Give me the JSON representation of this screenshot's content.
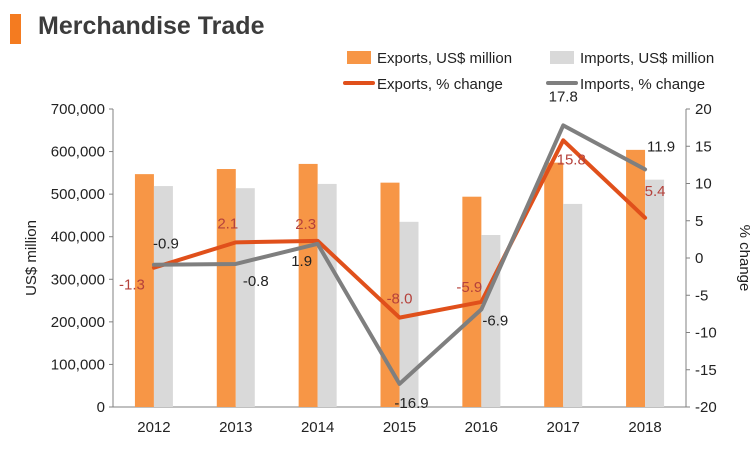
{
  "header": {
    "title": "Merchandise Trade",
    "accent": "#f47b20"
  },
  "chart_data": {
    "type": "bar",
    "categories": [
      "2012",
      "2013",
      "2014",
      "2015",
      "2016",
      "2017",
      "2018"
    ],
    "series": [
      {
        "name": "Exports, US$ million",
        "kind": "bar",
        "axis": "left",
        "color": "#f79646",
        "values": [
          547000,
          559000,
          571000,
          527000,
          494000,
          574000,
          604000
        ]
      },
      {
        "name": "Imports, US$ million",
        "kind": "bar",
        "axis": "left",
        "color": "#d9d9d9",
        "values": [
          519000,
          514000,
          524000,
          435000,
          404000,
          477000,
          534000
        ]
      },
      {
        "name": "Exports, % change",
        "kind": "line",
        "axis": "right",
        "color": "#e0501b",
        "values": [
          -1.3,
          2.1,
          2.3,
          -8.0,
          -5.9,
          15.8,
          5.4
        ],
        "labels": [
          "-1.3",
          "2.1",
          "2.3",
          "-8.0",
          "-5.9",
          "15.8",
          "5.4"
        ],
        "label_color": "#b5413b"
      },
      {
        "name": "Imports, % change",
        "kind": "line",
        "axis": "right",
        "color": "#7f7f7f",
        "values": [
          -0.9,
          -0.8,
          1.9,
          -16.9,
          -6.9,
          17.8,
          11.9
        ],
        "labels": [
          "-0.9",
          "-0.8",
          "1.9",
          "-16.9",
          "-6.9",
          "17.8",
          "11.9"
        ],
        "label_color": "#222222"
      }
    ],
    "ylabel": "US$ million",
    "y2label": "% change",
    "ylim": [
      0,
      700000
    ],
    "y2lim": [
      -20,
      20
    ],
    "yticks": [
      "0",
      "100,000",
      "200,000",
      "300,000",
      "400,000",
      "500,000",
      "600,000",
      "700,000"
    ],
    "y2ticks": [
      "-20",
      "-15",
      "-10",
      "-5",
      "0",
      "5",
      "10",
      "15",
      "20"
    ],
    "grid": false,
    "legend": "top-right"
  }
}
